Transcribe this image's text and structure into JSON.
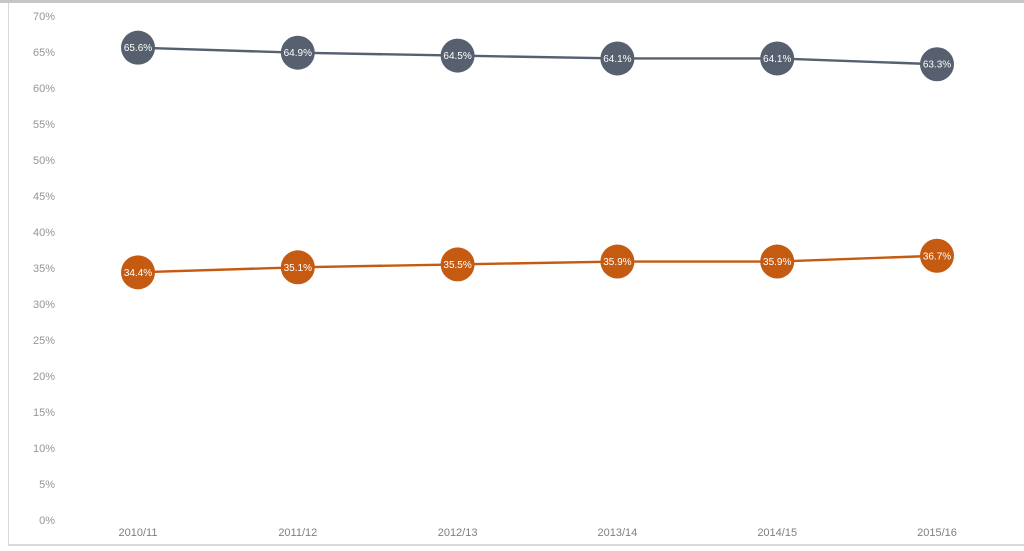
{
  "chart_data": {
    "type": "line",
    "title": "",
    "categories": [
      "2010/11",
      "2011/12",
      "2012/13",
      "2013/14",
      "2014/15",
      "2015/16"
    ],
    "series": [
      {
        "name": "series-1",
        "color": "#57606f",
        "values": [
          65.6,
          64.9,
          64.5,
          64.1,
          64.1,
          63.3
        ],
        "point_labels": [
          "65.6%",
          "64.9%",
          "64.5%",
          "64.1%",
          "64.1%",
          "63.3%"
        ]
      },
      {
        "name": "series-2",
        "color": "#c55a11",
        "values": [
          34.4,
          35.1,
          35.5,
          35.9,
          35.9,
          36.7
        ],
        "point_labels": [
          "34.4%",
          "35.1%",
          "35.5%",
          "35.9%",
          "35.9%",
          "36.7%"
        ]
      }
    ],
    "xlabel": "",
    "ylabel": "",
    "ylim": [
      0,
      70
    ],
    "ytick_step": 5,
    "ytick_labels": [
      "0%",
      "5%",
      "10%",
      "15%",
      "20%",
      "25%",
      "30%",
      "35%",
      "40%",
      "45%",
      "50%",
      "55%",
      "60%",
      "65%",
      "70%"
    ],
    "grid": false,
    "legend": "none",
    "marker_style": "filled-circle-with-percentage-label"
  },
  "colors": {
    "axis_text_y": "#969696",
    "axis_text_x": "#7f7f7f",
    "point_label_text": "#ffffff",
    "frame_border": "#d9d9d9",
    "top_strip": "#c6c6c6",
    "background": "#ffffff"
  }
}
